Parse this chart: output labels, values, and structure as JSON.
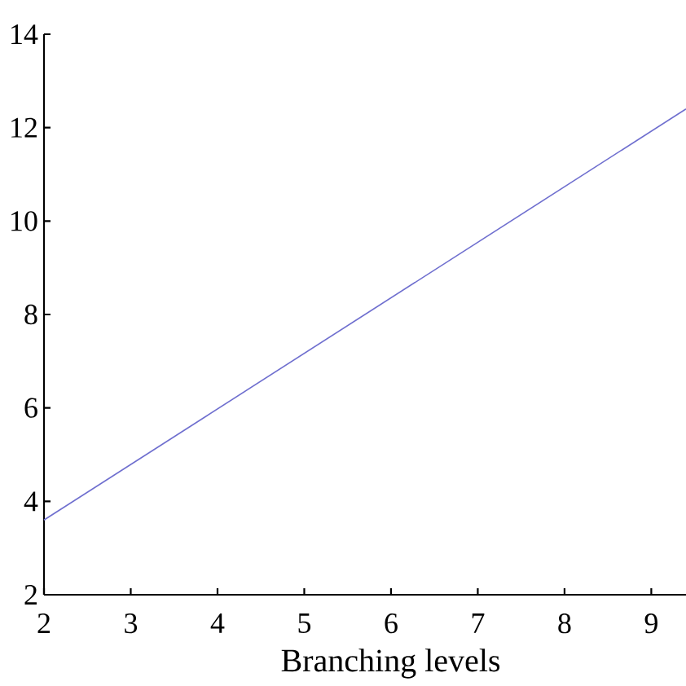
{
  "chart_data": {
    "type": "line",
    "xlabel": "Branching levels",
    "x": [
      2,
      9.4
    ],
    "values": [
      3.6,
      12.4
    ],
    "color": "#6f6fcf",
    "xlim": [
      2,
      9.4
    ],
    "xticks": [
      2,
      3,
      4,
      5,
      6,
      7,
      8,
      9
    ],
    "ylim": [
      2,
      14
    ],
    "yticks": [
      14,
      12,
      10,
      8,
      6,
      4,
      2
    ]
  }
}
